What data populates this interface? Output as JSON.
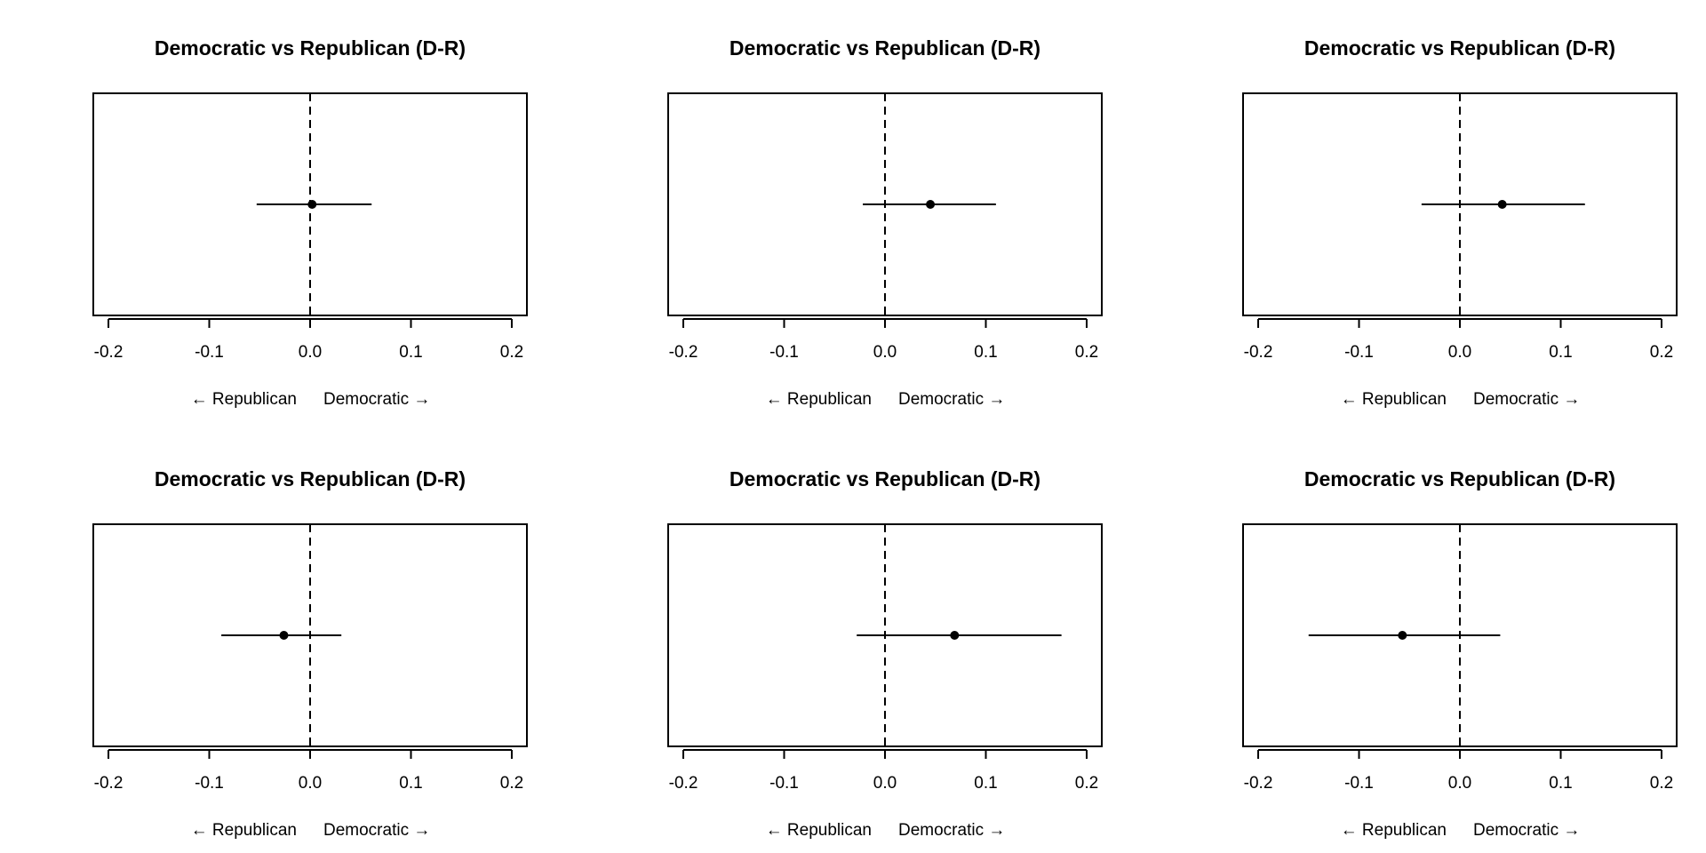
{
  "chart_data": [
    {
      "type": "scatter",
      "title": "Democratic vs Republican (D-R)",
      "xlabel_left": "← Republican",
      "xlabel_right": "Democratic →",
      "xlim": [
        -0.215,
        0.215
      ],
      "xticks": [
        -0.2,
        -0.1,
        0.0,
        0.1,
        0.2
      ],
      "xtick_labels": [
        "-0.2",
        "-0.1",
        "0.0",
        "0.1",
        "0.2"
      ],
      "reference_line": 0.0,
      "estimate": 0.002,
      "ci": [
        -0.053,
        0.061
      ]
    },
    {
      "type": "scatter",
      "title": "Democratic vs Republican (D-R)",
      "xlabel_left": "← Republican",
      "xlabel_right": "Democratic →",
      "xlim": [
        -0.215,
        0.215
      ],
      "xticks": [
        -0.2,
        -0.1,
        0.0,
        0.1,
        0.2
      ],
      "xtick_labels": [
        "-0.2",
        "-0.1",
        "0.0",
        "0.1",
        "0.2"
      ],
      "reference_line": 0.0,
      "estimate": 0.045,
      "ci": [
        -0.022,
        0.11
      ]
    },
    {
      "type": "scatter",
      "title": "Democratic vs Republican (D-R)",
      "xlabel_left": "← Republican",
      "xlabel_right": "Democratic →",
      "xlim": [
        -0.215,
        0.215
      ],
      "xticks": [
        -0.2,
        -0.1,
        0.0,
        0.1,
        0.2
      ],
      "xtick_labels": [
        "-0.2",
        "-0.1",
        "0.0",
        "0.1",
        "0.2"
      ],
      "reference_line": 0.0,
      "estimate": 0.042,
      "ci": [
        -0.038,
        0.124
      ]
    },
    {
      "type": "scatter",
      "title": "Democratic vs Republican (D-R)",
      "xlabel_left": "← Republican",
      "xlabel_right": "Democratic →",
      "xlim": [
        -0.215,
        0.215
      ],
      "xticks": [
        -0.2,
        -0.1,
        0.0,
        0.1,
        0.2
      ],
      "xtick_labels": [
        "-0.2",
        "-0.1",
        "0.0",
        "0.1",
        "0.2"
      ],
      "reference_line": 0.0,
      "estimate": -0.026,
      "ci": [
        -0.088,
        0.031
      ]
    },
    {
      "type": "scatter",
      "title": "Democratic vs Republican (D-R)",
      "xlabel_left": "← Republican",
      "xlabel_right": "Democratic →",
      "xlim": [
        -0.215,
        0.215
      ],
      "xticks": [
        -0.2,
        -0.1,
        0.0,
        0.1,
        0.2
      ],
      "xtick_labels": [
        "-0.2",
        "-0.1",
        "0.0",
        "0.1",
        "0.2"
      ],
      "reference_line": 0.0,
      "estimate": 0.069,
      "ci": [
        -0.028,
        0.175
      ]
    },
    {
      "type": "scatter",
      "title": "Democratic vs Republican (D-R)",
      "xlabel_left": "← Republican",
      "xlabel_right": "Democratic →",
      "xlim": [
        -0.215,
        0.215
      ],
      "xticks": [
        -0.2,
        -0.1,
        0.0,
        0.1,
        0.2
      ],
      "xtick_labels": [
        "-0.2",
        "-0.1",
        "0.0",
        "0.1",
        "0.2"
      ],
      "reference_line": 0.0,
      "estimate": -0.057,
      "ci": [
        -0.15,
        0.04
      ]
    }
  ],
  "colors": {
    "ink": "#000000",
    "background": "#ffffff"
  }
}
